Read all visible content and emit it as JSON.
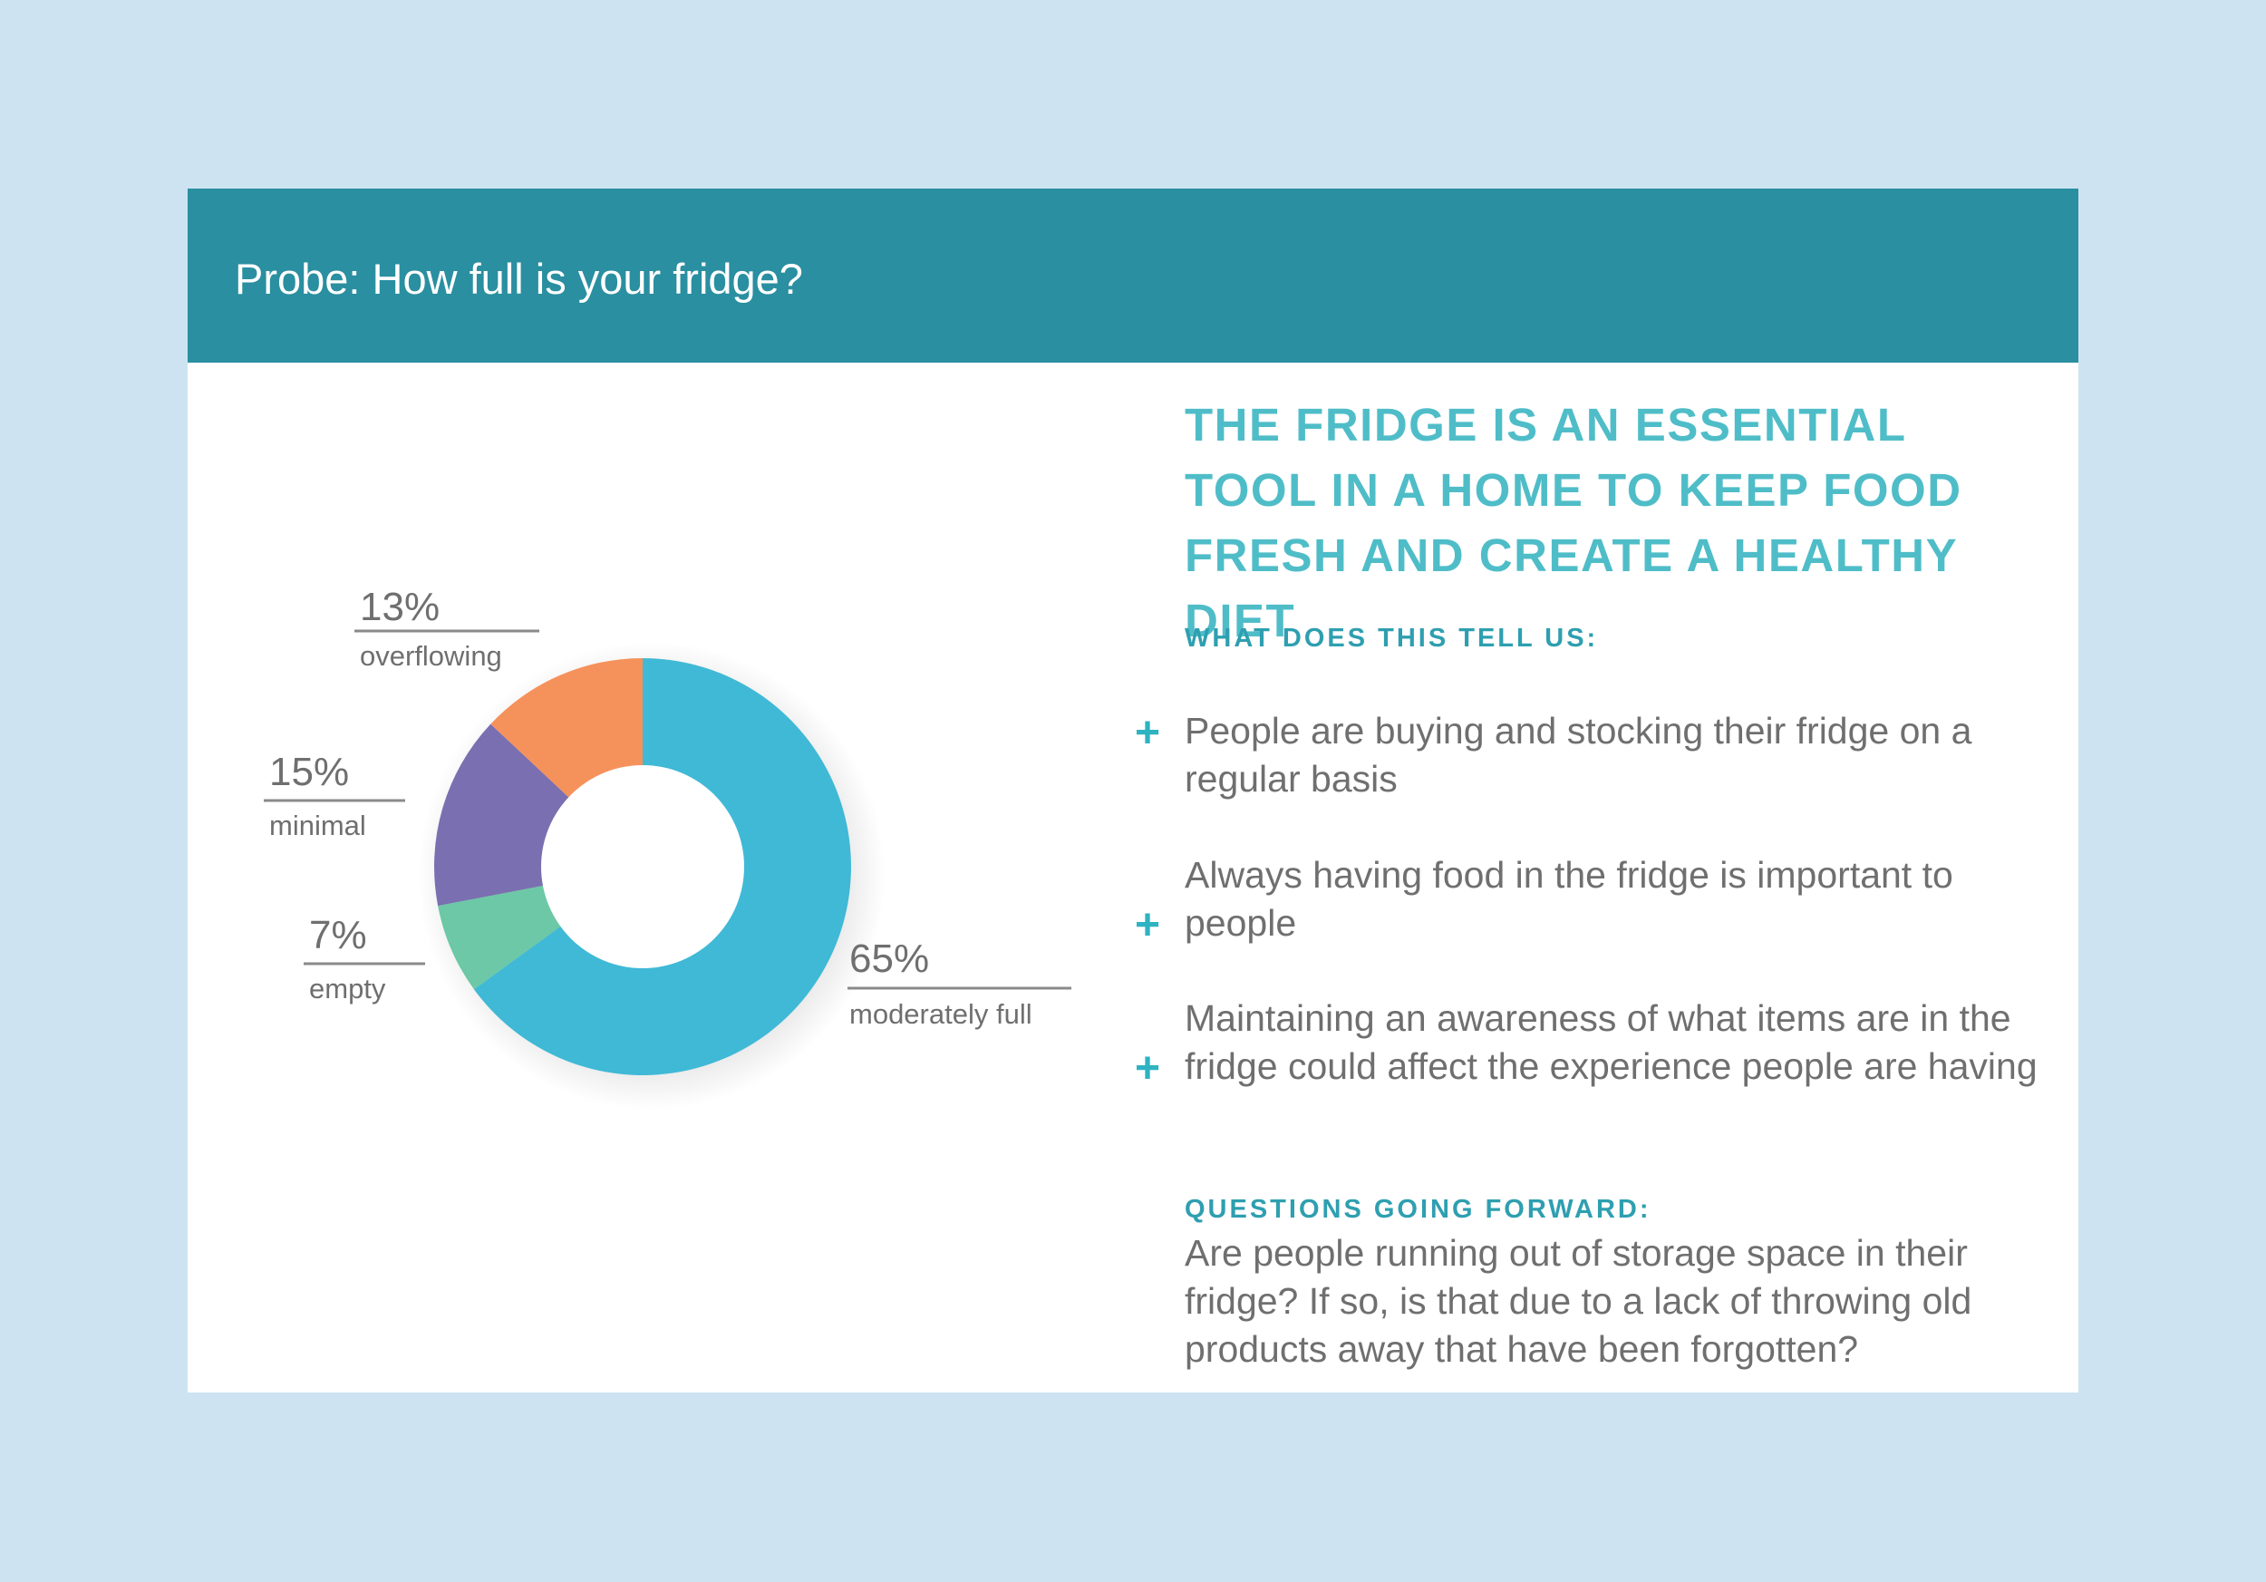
{
  "header": {
    "title": "Probe: How full is your fridge?"
  },
  "chart_data": {
    "type": "pie",
    "variant": "donut",
    "slices": [
      {
        "label": "moderately full",
        "value": 65,
        "value_label": "65%",
        "color": "#3fb9d6"
      },
      {
        "label": "empty",
        "value": 7,
        "value_label": "7%",
        "color": "#6cc8a6"
      },
      {
        "label": "minimal",
        "value": 15,
        "value_label": "15%",
        "color": "#7a6fb0"
      },
      {
        "label": "overflowing",
        "value": 13,
        "value_label": "13%",
        "color": "#f5925c"
      }
    ],
    "title": "",
    "legend": "none"
  },
  "insights": {
    "headline": "THE FRIDGE IS AN ESSENTIAL TOOL IN A HOME TO KEEP FOOD FRESH AND CREATE A HEALTHY DIET",
    "section_label": "WHAT DOES THIS TELL US:",
    "bullet_icon": "plus-icon",
    "bullets": [
      "People are buying and stocking their fridge on a regular basis",
      "Always having food in the fridge is important to people",
      "Maintaining an awareness of what items are in the fridge could affect the experience people are having"
    ],
    "questions_label": "QUESTIONS GOING FORWARD:",
    "questions_text": "Are people running out of storage space in their fridge? If so, is that due to a lack of throwing old products away that have been forgotten?"
  },
  "colors": {
    "background": "#cde3f1",
    "header": "#2a8fa0",
    "accent": "#4fbdc8",
    "body_text": "#6f6f6f"
  }
}
